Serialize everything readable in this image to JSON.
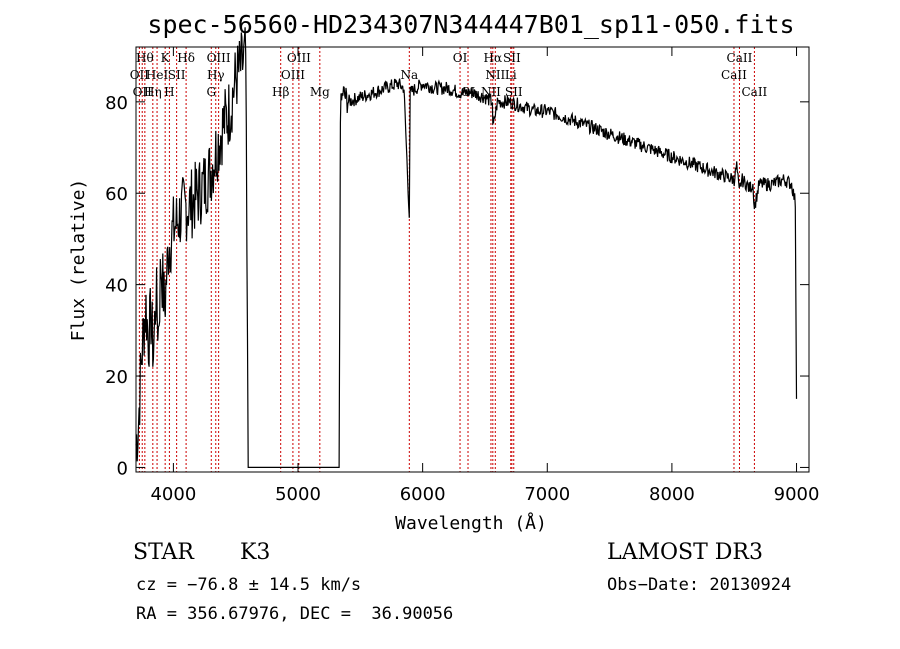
{
  "chart_data": {
    "type": "line",
    "title": "spec-56560-HD234307N344447B01_sp11-050.fits",
    "xlabel": "Wavelength (Å)",
    "ylabel": "Flux (relative)",
    "xlim": [
      3700,
      9100
    ],
    "ylim": [
      -1,
      92
    ],
    "xticks": [
      4000,
      5000,
      6000,
      7000,
      8000,
      9000
    ],
    "yticks": [
      0,
      20,
      40,
      60,
      80
    ],
    "spectrum_anchors": {
      "x": [
        3700,
        3720,
        3740,
        3760,
        3780,
        3800,
        3820,
        3840,
        3860,
        3880,
        3900,
        3930,
        3960,
        4000,
        4050,
        4100,
        4150,
        4200,
        4250,
        4300,
        4350,
        4400,
        4450,
        4500,
        4550,
        4580,
        4600,
        4640,
        4700,
        4800,
        4900,
        5000,
        5100,
        5200,
        5300,
        5330,
        5340,
        5360,
        5400,
        5500,
        5600,
        5700,
        5800,
        5850,
        5893,
        5900,
        5950,
        6000,
        6100,
        6200,
        6300,
        6400,
        6500,
        6560,
        6563,
        6600,
        6700,
        6800,
        6900,
        7000,
        7100,
        7200,
        7300,
        7400,
        7500,
        7600,
        7700,
        7800,
        7900,
        8000,
        8100,
        8200,
        8300,
        8400,
        8500,
        8520,
        8540,
        8560,
        8600,
        8620,
        8650,
        8662,
        8700,
        8800,
        8900,
        8960,
        8990,
        9000
      ],
      "y": [
        5,
        10,
        22,
        30,
        35,
        28,
        33,
        25,
        38,
        30,
        45,
        35,
        48,
        52,
        55,
        57,
        58,
        60,
        62,
        65,
        70,
        75,
        78,
        85,
        88,
        90,
        0,
        0,
        0,
        0,
        0,
        0,
        0,
        0,
        0,
        0,
        78,
        82,
        80,
        81,
        82,
        83,
        84,
        83,
        55,
        82,
        83,
        84,
        83,
        83,
        82,
        82,
        81,
        80,
        74,
        80,
        80,
        79,
        78,
        78,
        77,
        76,
        75,
        74,
        73,
        72,
        71,
        70,
        69,
        68,
        67,
        66,
        65,
        64,
        63,
        66,
        60,
        63,
        62,
        61,
        62,
        57,
        62,
        62,
        63,
        62,
        58,
        15
      ]
    },
    "lines": [
      {
        "x": 3727,
        "label": "OII",
        "row": 2
      },
      {
        "x": 3750,
        "label": "OII",
        "row": 3
      },
      {
        "x": 3771,
        "label": "Hθ",
        "row": 1
      },
      {
        "x": 3835,
        "label": "Hη",
        "row": 3
      },
      {
        "x": 3869,
        "label": "HeI",
        "row": 2
      },
      {
        "x": 3934,
        "label": "K",
        "row": 1
      },
      {
        "x": 3968,
        "label": "H",
        "row": 3
      },
      {
        "x": 4026,
        "label": "SII",
        "row": 2
      },
      {
        "x": 4102,
        "label": "Hδ",
        "row": 1
      },
      {
        "x": 4304,
        "label": "G",
        "row": 3
      },
      {
        "x": 4340,
        "label": "Hγ",
        "row": 2
      },
      {
        "x": 4363,
        "label": "OIII",
        "row": 1
      },
      {
        "x": 4861,
        "label": "Hβ",
        "row": 3
      },
      {
        "x": 4959,
        "label": "OIII",
        "row": 2
      },
      {
        "x": 5007,
        "label": "OIII",
        "row": 1
      },
      {
        "x": 5175,
        "label": "Mg",
        "row": 3
      },
      {
        "x": 5893,
        "label": "Na",
        "row": 2
      },
      {
        "x": 6300,
        "label": "OI",
        "row": 1
      },
      {
        "x": 6364,
        "label": "OI",
        "row": 3
      },
      {
        "x": 6548,
        "label": "NII",
        "row": 3
      },
      {
        "x": 6563,
        "label": "Hα",
        "row": 1
      },
      {
        "x": 6583,
        "label": "NII",
        "row": 2
      },
      {
        "x": 6707,
        "label": "Li",
        "row": 2
      },
      {
        "x": 6716,
        "label": "SII",
        "row": 1
      },
      {
        "x": 6731,
        "label": "SII",
        "row": 3
      },
      {
        "x": 8498,
        "label": "CaII",
        "row": 2
      },
      {
        "x": 8542,
        "label": "CaII",
        "row": 1
      },
      {
        "x": 8662,
        "label": "CaII",
        "row": 3
      }
    ]
  },
  "footer": {
    "class_label": "STAR",
    "subclass": "K3",
    "survey": "LAMOST DR3",
    "cz": "cz = −76.8 ± 14.5 km/s",
    "obs_date": "Obs−Date: 20130924",
    "coords": "RA = 356.67976, DEC =  36.90056"
  }
}
